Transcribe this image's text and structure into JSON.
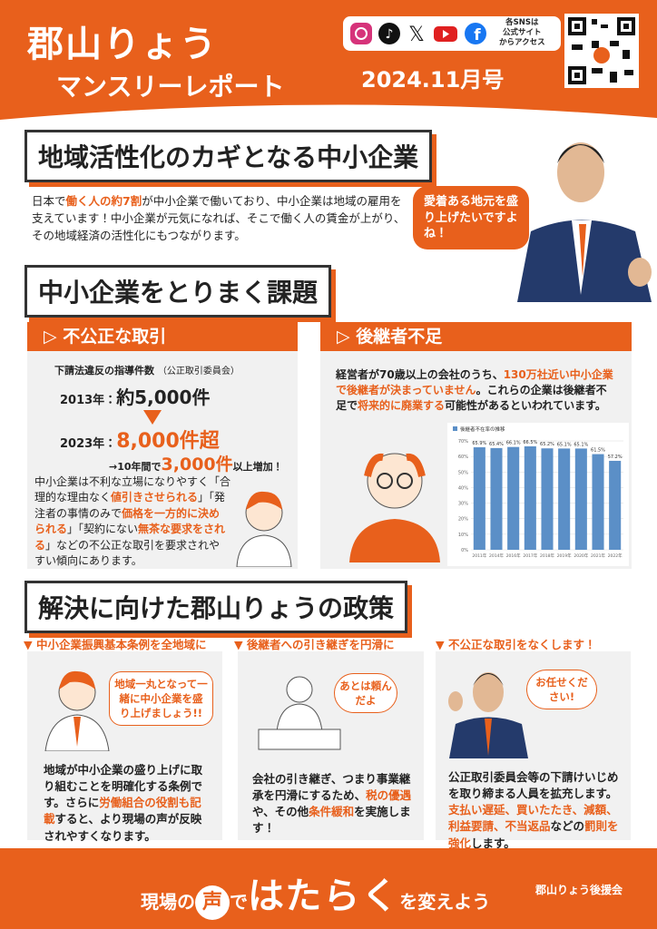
{
  "header": {
    "title": "郡山りょう",
    "subtitle": "マンスリーレポート",
    "issue": "2024.11月号",
    "sns_note": [
      "各SNSは",
      "公式サイト",
      "からアクセス"
    ]
  },
  "intro": {
    "heading": "地域活性化のカギとなる中小企業",
    "body": [
      {
        "text": "日本で"
      },
      {
        "text": "働く人の約7割",
        "highlight": true
      },
      {
        "text": "が中小企業で働いており、中小企業は地域の雇用を支えています！中小企業が元気になれば、そこで働く人の賃金が上がり、その地域経済の活性化にもつながります。"
      }
    ],
    "speech": "愛着ある地元を盛り上げたいですよね！"
  },
  "issues": {
    "heading": "中小企業をとりまく課題",
    "unfair": {
      "title": "不公正な取引",
      "stat_title": "下請法違反の指導件数",
      "stat_source": "（公正取引委員会）",
      "rows": [
        {
          "year": "2013年：",
          "value": "約5,000件"
        },
        {
          "year": "2023年：",
          "value": "8,000件超"
        }
      ],
      "increase": [
        "→10年間で",
        "3,000件",
        "以上増加！"
      ],
      "body": [
        {
          "text": "中小企業は不利な立場になりやすく「合理的な理由なく"
        },
        {
          "text": "値引きさせられる",
          "highlight": true
        },
        {
          "text": "」「発注者の事情のみで"
        },
        {
          "text": "価格を一方的に決められる",
          "highlight": true
        },
        {
          "text": "」「契約にない"
        },
        {
          "text": "無茶な要求をされる",
          "highlight": true
        },
        {
          "text": "」などの不公正な取引を要求されやすい傾向にあります。"
        }
      ]
    },
    "successor": {
      "title": "後継者不足",
      "body": [
        {
          "text": "経営者が70歳以上の会社のうち、"
        },
        {
          "text": "130万社近い中小企業で後継者が決まっていません",
          "highlight": true
        },
        {
          "text": "。これらの企業は後継者不足で"
        },
        {
          "text": "将来的に廃業する",
          "highlight": true
        },
        {
          "text": "可能性があるといわれています。"
        }
      ],
      "chart": {
        "type": "bar",
        "legend": "後継者不在率の推移",
        "color": "#5b8fc7",
        "categories": [
          "2011年",
          "2014年",
          "2016年",
          "2017年",
          "2018年",
          "2019年",
          "2020年",
          "2021年",
          "2022年"
        ],
        "values": [
          65.9,
          65.4,
          66.1,
          66.5,
          65.2,
          65.1,
          65.1,
          61.5,
          57.2
        ],
        "value_labels": [
          "65.9%",
          "65.4%",
          "66.1%",
          "66.5%",
          "65.2%",
          "65.1%",
          "65.1%",
          "61.5%",
          "57.2%"
        ],
        "ylim": [
          0,
          70
        ],
        "yticks": [
          {
            "value": 0,
            "label": "0%"
          },
          {
            "value": 10,
            "label": "10%"
          },
          {
            "value": 20,
            "label": "20%"
          },
          {
            "value": 30,
            "label": "30%"
          },
          {
            "value": 40,
            "label": "40%"
          },
          {
            "value": 50,
            "label": "50%"
          },
          {
            "value": 60,
            "label": "60%"
          },
          {
            "value": 70,
            "label": "70%"
          }
        ],
        "grid": true
      }
    }
  },
  "policies": {
    "heading": "解決に向けた郡山りょうの政策",
    "items": [
      {
        "title": "中小企業振興基本条例を全地域に",
        "speech": "地域一丸となって一緒に中小企業を盛り上げましょう!!",
        "body": [
          {
            "text": "地域が中小企業の盛り上げに取り組むことを明確化する条例です。さらに"
          },
          {
            "text": "労働組合の役割も記載",
            "highlight": true
          },
          {
            "text": "すると、より現場の声が反映されやすくなります。"
          }
        ]
      },
      {
        "title": "後継者への引き継ぎを円滑に",
        "speech": "あとは頼んだよ",
        "body": [
          {
            "text": "会社の引き継ぎ、つまり事業継承を円滑にするため、"
          },
          {
            "text": "税の優遇",
            "highlight": true
          },
          {
            "text": "や、その他"
          },
          {
            "text": "条件緩和",
            "highlight": true
          },
          {
            "text": "を実施します！"
          }
        ]
      },
      {
        "title": "不公正な取引をなくします！",
        "speech": "お任せください!",
        "body": [
          {
            "text": "公正取引委員会等の下請けいじめを取り締まる人員を拡充します。"
          },
          {
            "text": "支払い遅延、買いたたき、減額、利益要請、不当返品",
            "highlight": true
          },
          {
            "text": "などの"
          },
          {
            "text": "罰則を強化",
            "highlight": true
          },
          {
            "text": "します。"
          }
        ]
      }
    ]
  },
  "footer": {
    "slogan": [
      "現場の",
      "声",
      "で",
      "はたらく",
      "を変えよう"
    ],
    "org": "郡山りょう後援会"
  }
}
